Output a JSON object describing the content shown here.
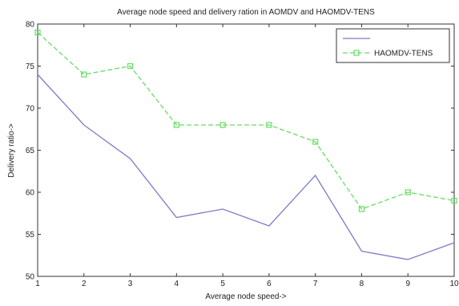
{
  "chart_data": {
    "type": "line",
    "title": "Average node speed and delivery ration in AOMDV and HAOMDV-TENS",
    "xlabel": "Average node speed->",
    "ylabel": "Delivery ratio->",
    "x": [
      1,
      2,
      3,
      4,
      5,
      6,
      7,
      8,
      9,
      10
    ],
    "xlim": [
      1,
      10
    ],
    "ylim": [
      50,
      80
    ],
    "xticks": [
      1,
      2,
      3,
      4,
      5,
      6,
      7,
      8,
      9,
      10
    ],
    "yticks": [
      50,
      55,
      60,
      65,
      70,
      75,
      80
    ],
    "grid": false,
    "legend": "top-right",
    "series": [
      {
        "name": "",
        "color": "#7b7bc8",
        "style": "solid",
        "marker": "none",
        "values": [
          74,
          68,
          64,
          57,
          58,
          56,
          62,
          53,
          52,
          54
        ]
      },
      {
        "name": "HAOMDV-TENS",
        "color": "#66dd66",
        "style": "dashed",
        "marker": "square",
        "values": [
          79,
          74,
          75,
          68,
          68,
          68,
          66,
          58,
          60,
          59
        ]
      }
    ]
  }
}
